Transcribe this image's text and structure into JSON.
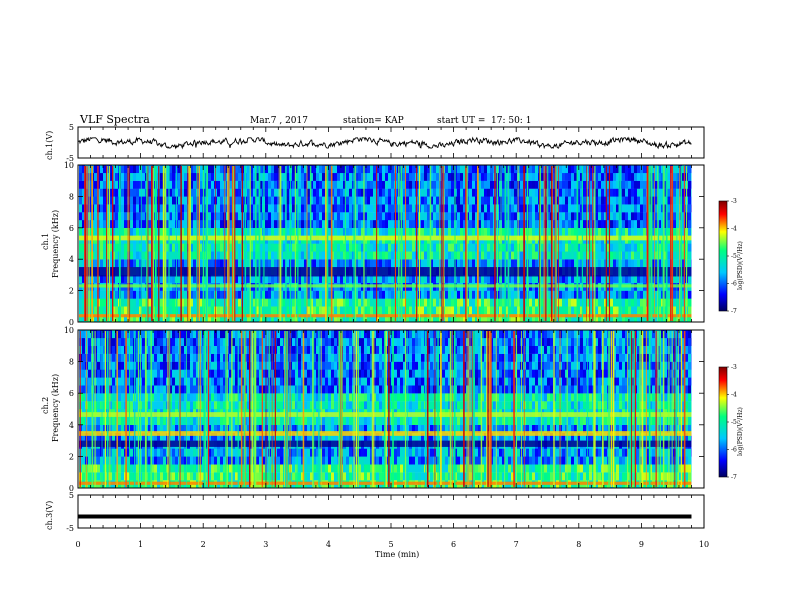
{
  "header": {
    "title": "VLF Spectra",
    "date": "Mar.7 , 2017",
    "station": "station= KAP",
    "start_label": "start UT =",
    "start_time": "17: 50: 1"
  },
  "chart_data": [
    {
      "type": "line",
      "name": "ch1-waveform",
      "ylabel": "ch.1(V)",
      "yticks": [
        "5",
        "-5"
      ],
      "ylim": [
        -5,
        5
      ],
      "xlim": [
        0,
        10
      ],
      "description_of_values": "noisy waveform fluctuating roughly between -1.5 and +1.5 V",
      "y_range_observed": [
        -1.5,
        1.5
      ]
    },
    {
      "type": "heatmap",
      "name": "ch1-spectrogram",
      "ylabel": "ch.1\nFrequency (kHz)",
      "ylabel_line1": "ch.1",
      "ylabel_line2": "Frequency (kHz)",
      "yticks": [
        "0",
        "2",
        "4",
        "6",
        "8",
        "10"
      ],
      "ylim": [
        0,
        10
      ],
      "xlim": [
        0,
        10
      ],
      "colorbar": {
        "label": "log(PSD)(V²/Hz)",
        "ticks": [
          "-3",
          "-4",
          "-5",
          "-6",
          "-7"
        ],
        "range": [
          -7,
          -3
        ],
        "colors": [
          "#000060",
          "#0000ff",
          "#00c8ff",
          "#00ff80",
          "#ffff00",
          "#ff0000",
          "#800000"
        ]
      },
      "bands": [
        {
          "freq_khz": [
            0.3,
            0.5
          ],
          "level": -3.8
        },
        {
          "freq_khz": [
            2.2,
            2.4
          ],
          "level": -4.5
        },
        {
          "freq_khz": [
            2.9,
            3.5
          ],
          "level": -6.8
        },
        {
          "freq_khz": [
            5.2,
            5.5
          ],
          "level": -4.2
        }
      ]
    },
    {
      "type": "heatmap",
      "name": "ch2-spectrogram",
      "ylabel": "ch.2\nFrequency (kHz)",
      "ylabel_line1": "ch.2",
      "ylabel_line2": "Frequency (kHz)",
      "yticks": [
        "0",
        "2",
        "4",
        "6",
        "8",
        "10"
      ],
      "ylim": [
        0,
        10
      ],
      "xlim": [
        0,
        10
      ],
      "colorbar": {
        "label": "log(PSD)(V²/Hz)",
        "ticks": [
          "-3",
          "-4",
          "-5",
          "-6",
          "-7"
        ],
        "range": [
          -7,
          -3
        ],
        "colors": [
          "#000060",
          "#0000ff",
          "#00c8ff",
          "#00ff80",
          "#ffff00",
          "#ff0000",
          "#800000"
        ]
      },
      "bands": [
        {
          "freq_khz": [
            0.2,
            0.4
          ],
          "level": -3.8
        },
        {
          "freq_khz": [
            3.3,
            3.6
          ],
          "level": -4.0
        },
        {
          "freq_khz": [
            4.5,
            4.8
          ],
          "level": -4.3
        },
        {
          "freq_khz": [
            2.6,
            3.0
          ],
          "level": -6.8
        }
      ]
    },
    {
      "type": "line",
      "name": "ch3-waveform",
      "ylabel": "ch.3(V)",
      "yticks": [
        "5",
        "-5"
      ],
      "ylim": [
        -5,
        5
      ],
      "xlim": [
        0,
        10
      ],
      "y_constant": -1.5
    }
  ],
  "x_axis": {
    "label": "Time  (min)",
    "ticks": [
      "0",
      "1",
      "2",
      "3",
      "4",
      "5",
      "6",
      "7",
      "8",
      "9",
      "10"
    ],
    "range": [
      0,
      10
    ],
    "data_end": 9.8
  }
}
